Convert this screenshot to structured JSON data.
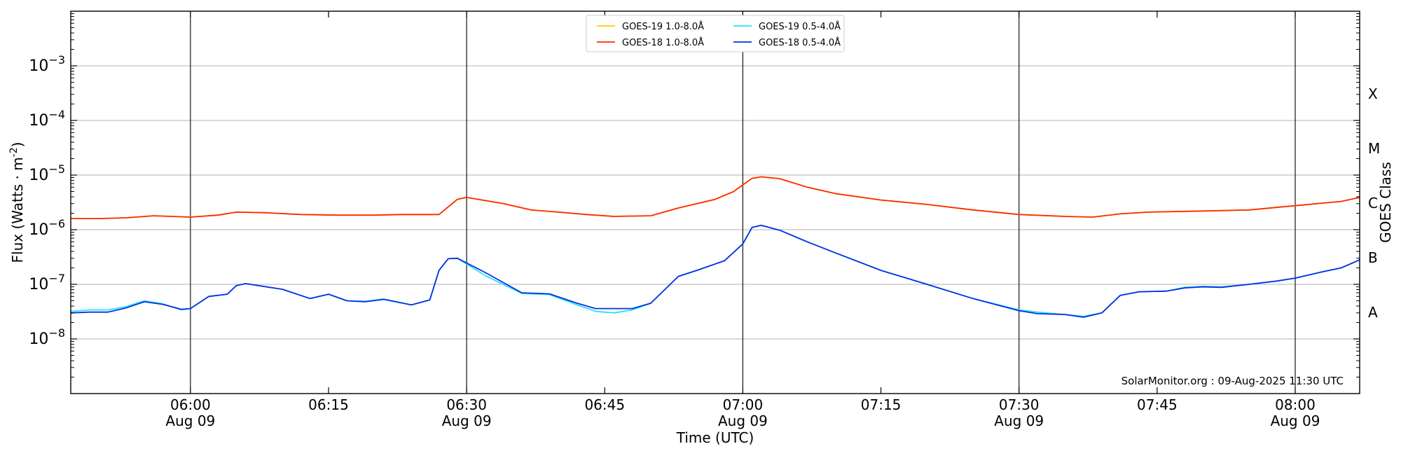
{
  "chart_data": {
    "type": "line",
    "title": "",
    "xlabel": "Time (UTC)",
    "ylabel": "Flux (Watts · m",
    "ylabel_sup": "-2",
    "ylabel_close": ")",
    "right_label": "GOES Class",
    "y_scale": "log",
    "xlim": [
      "2025-08-09 05:47",
      "2025-08-09 08:07"
    ],
    "ylim": [
      1e-09,
      0.01
    ],
    "grid": "horizontal",
    "legend_position": "top-center",
    "watermark": "SolarMonitor.org : 09-Aug-2025 11:30 UTC",
    "x_ticks": [
      {
        "t": "06:00",
        "time": "06:00",
        "date": "Aug 09",
        "major": true
      },
      {
        "t": "06:15",
        "time": "06:15",
        "date": "",
        "major": false
      },
      {
        "t": "06:30",
        "time": "06:30",
        "date": "Aug 09",
        "major": true
      },
      {
        "t": "06:45",
        "time": "06:45",
        "date": "",
        "major": false
      },
      {
        "t": "07:00",
        "time": "07:00",
        "date": "Aug 09",
        "major": true
      },
      {
        "t": "07:15",
        "time": "07:15",
        "date": "",
        "major": false
      },
      {
        "t": "07:30",
        "time": "07:30",
        "date": "Aug 09",
        "major": true
      },
      {
        "t": "07:45",
        "time": "07:45",
        "date": "",
        "major": false
      },
      {
        "t": "08:00",
        "time": "08:00",
        "date": "Aug 09",
        "major": true
      }
    ],
    "y_ticks": [
      {
        "value": 1e-08,
        "base": "10",
        "exp": "−8"
      },
      {
        "value": 1e-07,
        "base": "10",
        "exp": "−7"
      },
      {
        "value": 1e-06,
        "base": "10",
        "exp": "−6"
      },
      {
        "value": 1e-05,
        "base": "10",
        "exp": "−5"
      },
      {
        "value": 0.0001,
        "base": "10",
        "exp": "−4"
      },
      {
        "value": 0.001,
        "base": "10",
        "exp": "−3"
      }
    ],
    "goes_classes": [
      {
        "label": "A",
        "value": 3.16e-08
      },
      {
        "label": "B",
        "value": 3.16e-07
      },
      {
        "label": "C",
        "value": 3.16e-06
      },
      {
        "label": "M",
        "value": 3.16e-05
      },
      {
        "label": "X",
        "value": 0.000316
      }
    ],
    "series": [
      {
        "name": "GOES-19 1.0-8.0Å",
        "color": "#ffcc00",
        "points": [
          [
            "05:47",
            1.6e-06
          ],
          [
            "05:50",
            1.6e-06
          ],
          [
            "05:53",
            1.65e-06
          ],
          [
            "05:56",
            1.8e-06
          ],
          [
            "06:00",
            1.7e-06
          ],
          [
            "06:03",
            1.85e-06
          ],
          [
            "06:05",
            2.1e-06
          ],
          [
            "06:08",
            2.05e-06
          ],
          [
            "06:12",
            1.9e-06
          ],
          [
            "06:16",
            1.85e-06
          ],
          [
            "06:20",
            1.85e-06
          ],
          [
            "06:23",
            1.9e-06
          ],
          [
            "06:27",
            1.9e-06
          ],
          [
            "06:29",
            3.6e-06
          ],
          [
            "06:30",
            3.9e-06
          ],
          [
            "06:34",
            3e-06
          ],
          [
            "06:37",
            2.3e-06
          ],
          [
            "06:40",
            2.1e-06
          ],
          [
            "06:43",
            1.9e-06
          ],
          [
            "06:46",
            1.75e-06
          ],
          [
            "06:50",
            1.8e-06
          ],
          [
            "06:53",
            2.5e-06
          ],
          [
            "06:57",
            3.6e-06
          ],
          [
            "06:59",
            5e-06
          ],
          [
            "07:01",
            8.7e-06
          ],
          [
            "07:02",
            9.3e-06
          ],
          [
            "07:04",
            8.6e-06
          ],
          [
            "07:07",
            6e-06
          ],
          [
            "07:10",
            4.6e-06
          ],
          [
            "07:15",
            3.5e-06
          ],
          [
            "07:20",
            2.9e-06
          ],
          [
            "07:25",
            2.3e-06
          ],
          [
            "07:30",
            1.9e-06
          ],
          [
            "07:35",
            1.75e-06
          ],
          [
            "07:38",
            1.7e-06
          ],
          [
            "07:41",
            1.95e-06
          ],
          [
            "07:44",
            2.1e-06
          ],
          [
            "07:50",
            2.2e-06
          ],
          [
            "07:55",
            2.3e-06
          ],
          [
            "08:00",
            2.75e-06
          ],
          [
            "08:05",
            3.3e-06
          ],
          [
            "08:07",
            3.9e-06
          ]
        ]
      },
      {
        "name": "GOES-18 1.0-8.0Å",
        "color": "#ff2a00",
        "points": [
          [
            "05:47",
            1.6e-06
          ],
          [
            "05:50",
            1.6e-06
          ],
          [
            "05:53",
            1.65e-06
          ],
          [
            "05:56",
            1.8e-06
          ],
          [
            "06:00",
            1.7e-06
          ],
          [
            "06:03",
            1.85e-06
          ],
          [
            "06:05",
            2.1e-06
          ],
          [
            "06:08",
            2.05e-06
          ],
          [
            "06:12",
            1.9e-06
          ],
          [
            "06:16",
            1.85e-06
          ],
          [
            "06:20",
            1.85e-06
          ],
          [
            "06:23",
            1.9e-06
          ],
          [
            "06:27",
            1.9e-06
          ],
          [
            "06:29",
            3.6e-06
          ],
          [
            "06:30",
            3.9e-06
          ],
          [
            "06:34",
            3e-06
          ],
          [
            "06:37",
            2.3e-06
          ],
          [
            "06:40",
            2.1e-06
          ],
          [
            "06:43",
            1.9e-06
          ],
          [
            "06:46",
            1.75e-06
          ],
          [
            "06:50",
            1.8e-06
          ],
          [
            "06:53",
            2.5e-06
          ],
          [
            "06:57",
            3.6e-06
          ],
          [
            "06:59",
            5e-06
          ],
          [
            "07:01",
            8.7e-06
          ],
          [
            "07:02",
            9.3e-06
          ],
          [
            "07:04",
            8.6e-06
          ],
          [
            "07:07",
            6e-06
          ],
          [
            "07:10",
            4.6e-06
          ],
          [
            "07:15",
            3.5e-06
          ],
          [
            "07:20",
            2.9e-06
          ],
          [
            "07:25",
            2.3e-06
          ],
          [
            "07:30",
            1.9e-06
          ],
          [
            "07:35",
            1.75e-06
          ],
          [
            "07:38",
            1.7e-06
          ],
          [
            "07:41",
            1.95e-06
          ],
          [
            "07:44",
            2.1e-06
          ],
          [
            "07:50",
            2.2e-06
          ],
          [
            "07:55",
            2.3e-06
          ],
          [
            "08:00",
            2.75e-06
          ],
          [
            "08:05",
            3.3e-06
          ],
          [
            "08:07",
            3.9e-06
          ]
        ]
      },
      {
        "name": "GOES-19 0.5-4.0Å",
        "color": "#22e6f0",
        "points": [
          [
            "05:47",
            3.2e-08
          ],
          [
            "05:49",
            3.4e-08
          ],
          [
            "05:51",
            3.4e-08
          ],
          [
            "05:53",
            3.9e-08
          ],
          [
            "05:55",
            5e-08
          ],
          [
            "05:57",
            4.4e-08
          ],
          [
            "05:59",
            3.4e-08
          ],
          [
            "06:00",
            3.6e-08
          ],
          [
            "06:02",
            6e-08
          ],
          [
            "06:04",
            6.6e-08
          ],
          [
            "06:05",
            9.5e-08
          ],
          [
            "06:06",
            1.03e-07
          ],
          [
            "06:10",
            8.1e-08
          ],
          [
            "06:13",
            5.5e-08
          ],
          [
            "06:15",
            6.6e-08
          ],
          [
            "06:17",
            5e-08
          ],
          [
            "06:19",
            4.9e-08
          ],
          [
            "06:21",
            5.4e-08
          ],
          [
            "06:24",
            4.2e-08
          ],
          [
            "06:26",
            5.2e-08
          ],
          [
            "06:27",
            1.8e-07
          ],
          [
            "06:28",
            2.95e-07
          ],
          [
            "06:29",
            3e-07
          ],
          [
            "06:32",
            1.45e-07
          ],
          [
            "06:36",
            6.8e-08
          ],
          [
            "06:39",
            6.5e-08
          ],
          [
            "06:42",
            4.2e-08
          ],
          [
            "06:44",
            3.2e-08
          ],
          [
            "06:46",
            3e-08
          ],
          [
            "06:48",
            3.4e-08
          ],
          [
            "06:50",
            4.5e-08
          ],
          [
            "06:53",
            1.4e-07
          ],
          [
            "06:55",
            1.8e-07
          ],
          [
            "06:58",
            2.7e-07
          ],
          [
            "07:00",
            5.5e-07
          ],
          [
            "07:01",
            1.1e-06
          ],
          [
            "07:02",
            1.2e-06
          ],
          [
            "07:04",
            9.8e-07
          ],
          [
            "07:07",
            6e-07
          ],
          [
            "07:10",
            3.8e-07
          ],
          [
            "07:15",
            1.8e-07
          ],
          [
            "07:20",
            1e-07
          ],
          [
            "07:25",
            5.5e-08
          ],
          [
            "07:30",
            3.4e-08
          ],
          [
            "07:32",
            3.1e-08
          ],
          [
            "07:35",
            2.8e-08
          ],
          [
            "07:37",
            2.6e-08
          ],
          [
            "07:39",
            3e-08
          ],
          [
            "07:41",
            6.3e-08
          ],
          [
            "07:43",
            7.3e-08
          ],
          [
            "07:46",
            7.5e-08
          ],
          [
            "07:48",
            8.8e-08
          ],
          [
            "07:50",
            9.2e-08
          ],
          [
            "07:52",
            9e-08
          ],
          [
            "07:55",
            1e-07
          ],
          [
            "07:58",
            1.15e-07
          ],
          [
            "08:00",
            1.3e-07
          ],
          [
            "08:03",
            1.7e-07
          ],
          [
            "08:05",
            2e-07
          ],
          [
            "08:07",
            2.8e-07
          ]
        ]
      },
      {
        "name": "GOES-18 0.5-4.0Å",
        "color": "#0a2ee6",
        "points": [
          [
            "05:47",
            3e-08
          ],
          [
            "05:49",
            3.1e-08
          ],
          [
            "05:51",
            3.1e-08
          ],
          [
            "05:53",
            3.7e-08
          ],
          [
            "05:55",
            4.8e-08
          ],
          [
            "05:57",
            4.3e-08
          ],
          [
            "05:59",
            3.5e-08
          ],
          [
            "06:00",
            3.6e-08
          ],
          [
            "06:02",
            6e-08
          ],
          [
            "06:04",
            6.6e-08
          ],
          [
            "06:05",
            9.5e-08
          ],
          [
            "06:06",
            1.03e-07
          ],
          [
            "06:10",
            8.1e-08
          ],
          [
            "06:13",
            5.5e-08
          ],
          [
            "06:15",
            6.6e-08
          ],
          [
            "06:17",
            5e-08
          ],
          [
            "06:19",
            4.8e-08
          ],
          [
            "06:21",
            5.3e-08
          ],
          [
            "06:24",
            4.2e-08
          ],
          [
            "06:26",
            5.2e-08
          ],
          [
            "06:27",
            1.8e-07
          ],
          [
            "06:28",
            2.95e-07
          ],
          [
            "06:29",
            3e-07
          ],
          [
            "06:32",
            1.65e-07
          ],
          [
            "06:36",
            7e-08
          ],
          [
            "06:39",
            6.7e-08
          ],
          [
            "06:42",
            4.5e-08
          ],
          [
            "06:44",
            3.6e-08
          ],
          [
            "06:46",
            3.6e-08
          ],
          [
            "06:48",
            3.6e-08
          ],
          [
            "06:50",
            4.5e-08
          ],
          [
            "06:53",
            1.4e-07
          ],
          [
            "06:55",
            1.8e-07
          ],
          [
            "06:58",
            2.7e-07
          ],
          [
            "07:00",
            5.5e-07
          ],
          [
            "07:01",
            1.1e-06
          ],
          [
            "07:02",
            1.2e-06
          ],
          [
            "07:04",
            9.8e-07
          ],
          [
            "07:07",
            6e-07
          ],
          [
            "07:10",
            3.8e-07
          ],
          [
            "07:15",
            1.8e-07
          ],
          [
            "07:20",
            1e-07
          ],
          [
            "07:25",
            5.5e-08
          ],
          [
            "07:30",
            3.3e-08
          ],
          [
            "07:32",
            2.9e-08
          ],
          [
            "07:35",
            2.8e-08
          ],
          [
            "07:37",
            2.5e-08
          ],
          [
            "07:39",
            3e-08
          ],
          [
            "07:41",
            6.3e-08
          ],
          [
            "07:43",
            7.3e-08
          ],
          [
            "07:46",
            7.5e-08
          ],
          [
            "07:48",
            8.6e-08
          ],
          [
            "07:50",
            9e-08
          ],
          [
            "07:52",
            8.8e-08
          ],
          [
            "07:55",
            1e-07
          ],
          [
            "07:58",
            1.15e-07
          ],
          [
            "08:00",
            1.3e-07
          ],
          [
            "08:03",
            1.7e-07
          ],
          [
            "08:05",
            2e-07
          ],
          [
            "08:07",
            2.8e-07
          ]
        ]
      }
    ]
  }
}
